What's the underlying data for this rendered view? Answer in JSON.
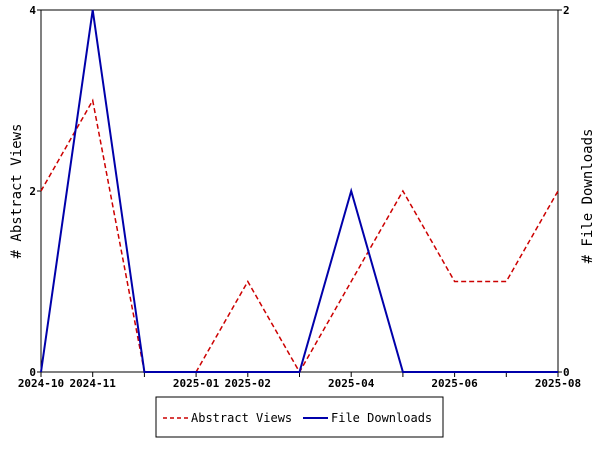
{
  "chart_data": {
    "type": "line",
    "x": [
      "2024-10",
      "2024-11",
      "2024-12",
      "2025-01",
      "2025-02",
      "2025-03",
      "2025-04",
      "2025-05",
      "2025-06",
      "2025-07",
      "2025-08"
    ],
    "x_tick_labels": [
      "2024-10",
      "2024-11",
      "",
      "2025-01",
      "2025-02",
      "",
      "2025-04",
      "",
      "2025-06",
      "",
      "2025-08"
    ],
    "series": [
      {
        "name": "Abstract Views",
        "axis": "left",
        "color": "#cc0000",
        "style": "dashed",
        "values": [
          2,
          3,
          0,
          0,
          1,
          0,
          1,
          2,
          1,
          1,
          2
        ]
      },
      {
        "name": "File Downloads",
        "axis": "right",
        "color": "#0000aa",
        "style": "solid",
        "values": [
          0,
          2,
          0,
          0,
          0,
          0,
          1,
          0,
          0,
          0,
          0
        ]
      }
    ],
    "ylabel_left": "# Abstract Views",
    "ylabel_right": "# File Downloads",
    "ylim_left": [
      0,
      4
    ],
    "ylim_right": [
      0,
      2
    ],
    "y_ticks_left": [
      "0",
      "2",
      "4"
    ],
    "y_ticks_right": [
      "0",
      "2"
    ],
    "grid": false,
    "legend_position": "bottom-center"
  }
}
